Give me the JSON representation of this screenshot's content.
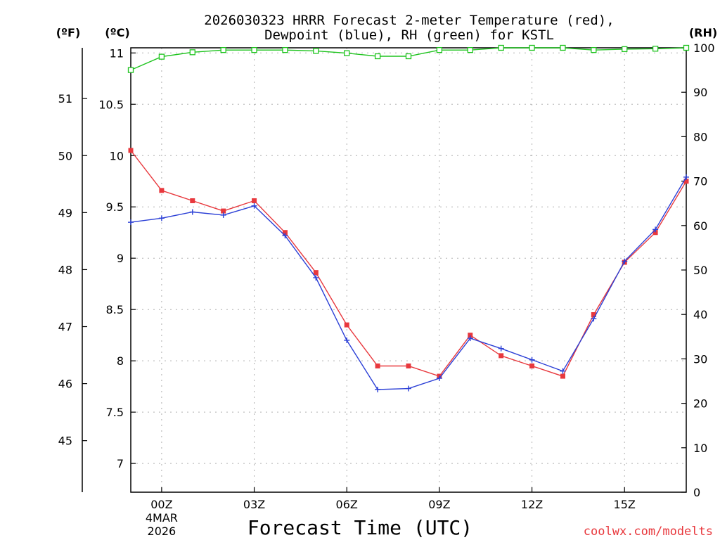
{
  "title_line1": "2026030323 HRRR Forecast 2-meter Temperature (red),",
  "title_line2": "Dewpoint (blue), RH (green) for KSTL",
  "unit_f": "(ºF)",
  "unit_c": "(ºC)",
  "unit_rh": "(RH)",
  "credit": "coolwx.com/modelts",
  "colors": {
    "temperature": "#e8383d",
    "dewpoint": "#2b3fd6",
    "rh": "#1ec41e",
    "credit": "#e8383d"
  },
  "chart_data": {
    "type": "line",
    "x": [
      -1,
      0,
      1,
      2,
      3,
      4,
      5,
      6,
      7,
      8,
      9,
      10,
      11,
      12,
      13,
      14,
      15,
      16,
      17
    ],
    "x_ticks": [
      {
        "x": 0,
        "label": "00Z",
        "sub1": "4MAR",
        "sub2": "2026"
      },
      {
        "x": 3,
        "label": "03Z"
      },
      {
        "x": 6,
        "label": "06Z"
      },
      {
        "x": 9,
        "label": "09Z"
      },
      {
        "x": 12,
        "label": "12Z"
      },
      {
        "x": 15,
        "label": "15Z"
      }
    ],
    "xlim": [
      -1,
      17
    ],
    "xlabel": "Forecast Time (UTC)",
    "ylim_c": [
      6.72,
      11.05
    ],
    "ylim_rh": [
      0,
      100
    ],
    "c_ticks": [
      "7",
      "7.5",
      "8",
      "8.5",
      "9",
      "9.5",
      "10",
      "10.5",
      "11"
    ],
    "f_ticks": [
      "45",
      "46",
      "47",
      "48",
      "49",
      "50",
      "51"
    ],
    "rh_ticks": [
      "0",
      "10",
      "20",
      "30",
      "40",
      "50",
      "60",
      "70",
      "80",
      "90",
      "100"
    ],
    "series": [
      {
        "name": "Temperature",
        "unit": "C",
        "values": [
          10.05,
          9.66,
          9.56,
          9.46,
          9.56,
          9.25,
          8.86,
          8.35,
          7.95,
          7.95,
          7.85,
          8.25,
          8.05,
          7.95,
          7.85,
          8.45,
          8.96,
          9.25,
          9.75
        ]
      },
      {
        "name": "Dewpoint",
        "unit": "C",
        "values": [
          9.35,
          9.39,
          9.45,
          9.42,
          9.51,
          9.22,
          8.81,
          8.2,
          7.72,
          7.73,
          7.83,
          8.22,
          8.12,
          8.01,
          7.9,
          8.41,
          8.97,
          9.28,
          9.79
        ]
      },
      {
        "name": "RH",
        "unit": "%",
        "values": [
          95,
          98,
          99,
          99.5,
          99.5,
          99.5,
          99.3,
          98.8,
          98.1,
          98.1,
          99.5,
          99.5,
          100,
          100,
          100,
          99.5,
          99.7,
          99.8,
          100
        ]
      }
    ]
  }
}
